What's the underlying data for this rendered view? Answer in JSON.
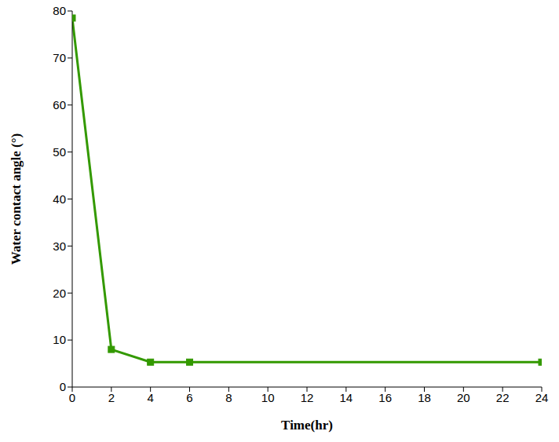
{
  "chart_data": {
    "type": "line",
    "x": [
      0,
      2,
      4,
      6,
      24
    ],
    "values": [
      78.5,
      8,
      5.3,
      5.3,
      5.3
    ],
    "color": "#339900",
    "marker": "square",
    "line_style": "solid",
    "xlim": [
      0,
      24
    ],
    "xticks": [
      0,
      2,
      4,
      6,
      8,
      10,
      12,
      14,
      16,
      18,
      20,
      22,
      24
    ],
    "ylim": [
      0,
      80
    ],
    "yticks": [
      0,
      10,
      20,
      30,
      40,
      50,
      60,
      70,
      80
    ],
    "grid": false,
    "xlabel": "Time(hr)",
    "ylabel": "Water contact angle (°)"
  }
}
